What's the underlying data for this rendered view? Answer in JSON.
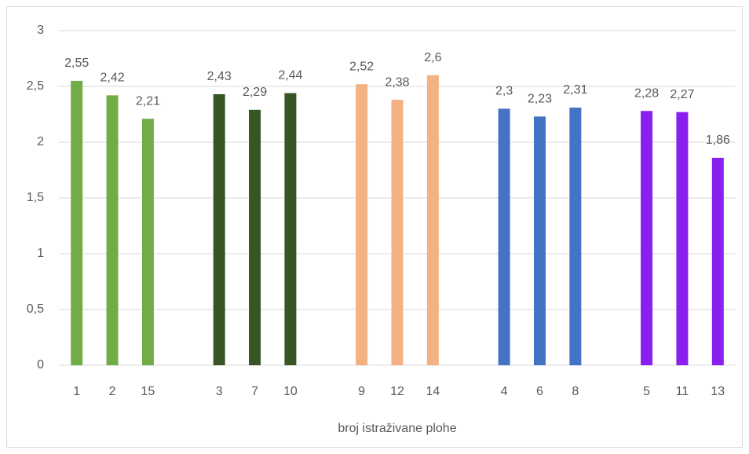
{
  "chart_data": {
    "type": "bar",
    "x_label": "broj istraživane plohe",
    "categories": [
      "1",
      "2",
      "15",
      null,
      "3",
      "7",
      "10",
      null,
      "9",
      "12",
      "14",
      null,
      "4",
      "6",
      "8",
      null,
      "5",
      "11",
      "13"
    ],
    "values": [
      2.55,
      2.42,
      2.21,
      null,
      2.43,
      2.29,
      2.44,
      null,
      2.52,
      2.38,
      2.6,
      null,
      2.3,
      2.23,
      2.31,
      null,
      2.28,
      2.27,
      1.86
    ],
    "value_labels": [
      "2,55",
      "2,42",
      "2,21",
      null,
      "2,43",
      "2,29",
      "2,44",
      null,
      "2,52",
      "2,38",
      "2,6",
      null,
      "2,3",
      "2,23",
      "2,31",
      null,
      "2,28",
      "2,27",
      "1,86"
    ],
    "colors": [
      "#70ad47",
      "#70ad47",
      "#70ad47",
      null,
      "#375623",
      "#375623",
      "#375623",
      null,
      "#f4b183",
      "#f4b183",
      "#f4b183",
      null,
      "#4472c4",
      "#4472c4",
      "#4472c4",
      null,
      "#8a20f0",
      "#8a20f0",
      "#8a20f0"
    ],
    "ylim": [
      0,
      3
    ],
    "yticks": [
      0,
      {
        "value": 0.5,
        "label": "0,5"
      },
      1,
      {
        "value": 1.5,
        "label": "1,5"
      },
      2,
      {
        "value": 2.5,
        "label": "2,5"
      },
      3
    ],
    "grid": true
  }
}
